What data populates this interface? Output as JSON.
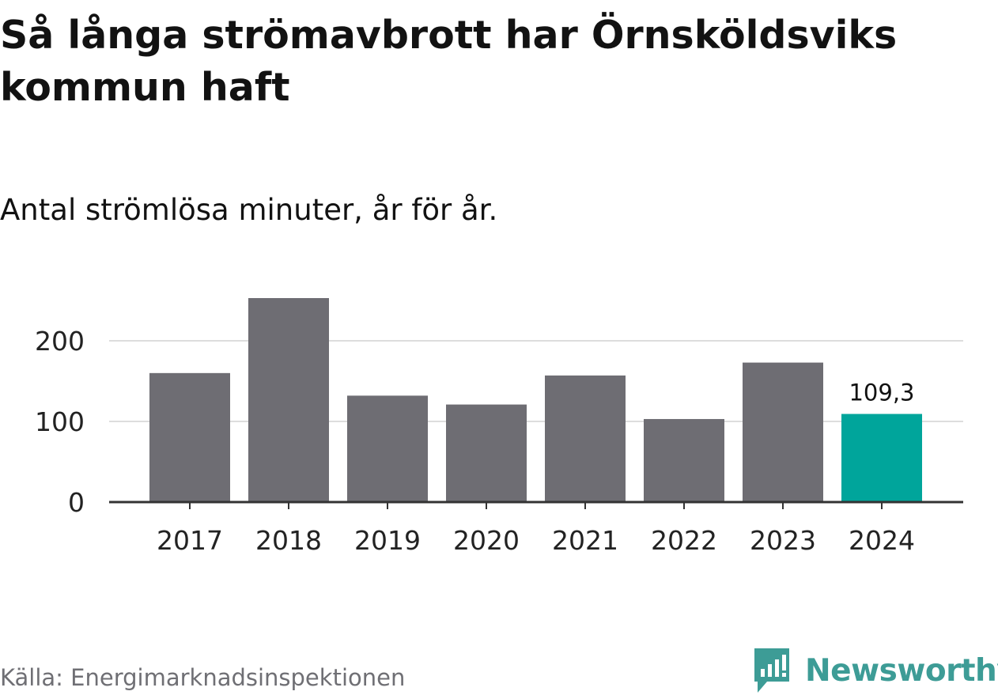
{
  "title": "Så långa strömavbrott har Örnsköldsviks kommun haft",
  "subtitle": "Antal strömlösa minuter, år för år.",
  "source": "Källa: Energimarknadsinspektionen",
  "brand": {
    "name": "Newsworthy",
    "color": "#3d9c96"
  },
  "colors": {
    "bar": "#6e6d73",
    "highlight": "#00a59b",
    "grid": "#dddddd",
    "axis": "#333333",
    "tick_text": "#222222"
  },
  "chart_data": {
    "type": "bar",
    "title": "Så långa strömavbrott har Örnsköldsviks kommun haft",
    "subtitle": "Antal strömlösa minuter, år för år.",
    "categories": [
      "2017",
      "2018",
      "2019",
      "2020",
      "2021",
      "2022",
      "2023",
      "2024"
    ],
    "values": [
      160,
      253,
      132,
      121,
      157,
      103,
      173,
      109.3
    ],
    "highlight_index": 7,
    "data_labels": [
      {
        "index": 7,
        "text": "109,3"
      }
    ],
    "xlabel": "",
    "ylabel": "",
    "ylim": [
      0,
      253
    ],
    "yticks": [
      0,
      100,
      200
    ],
    "ytick_labels": [
      "0",
      "100",
      "200"
    ],
    "grid": true,
    "legend": "none"
  }
}
